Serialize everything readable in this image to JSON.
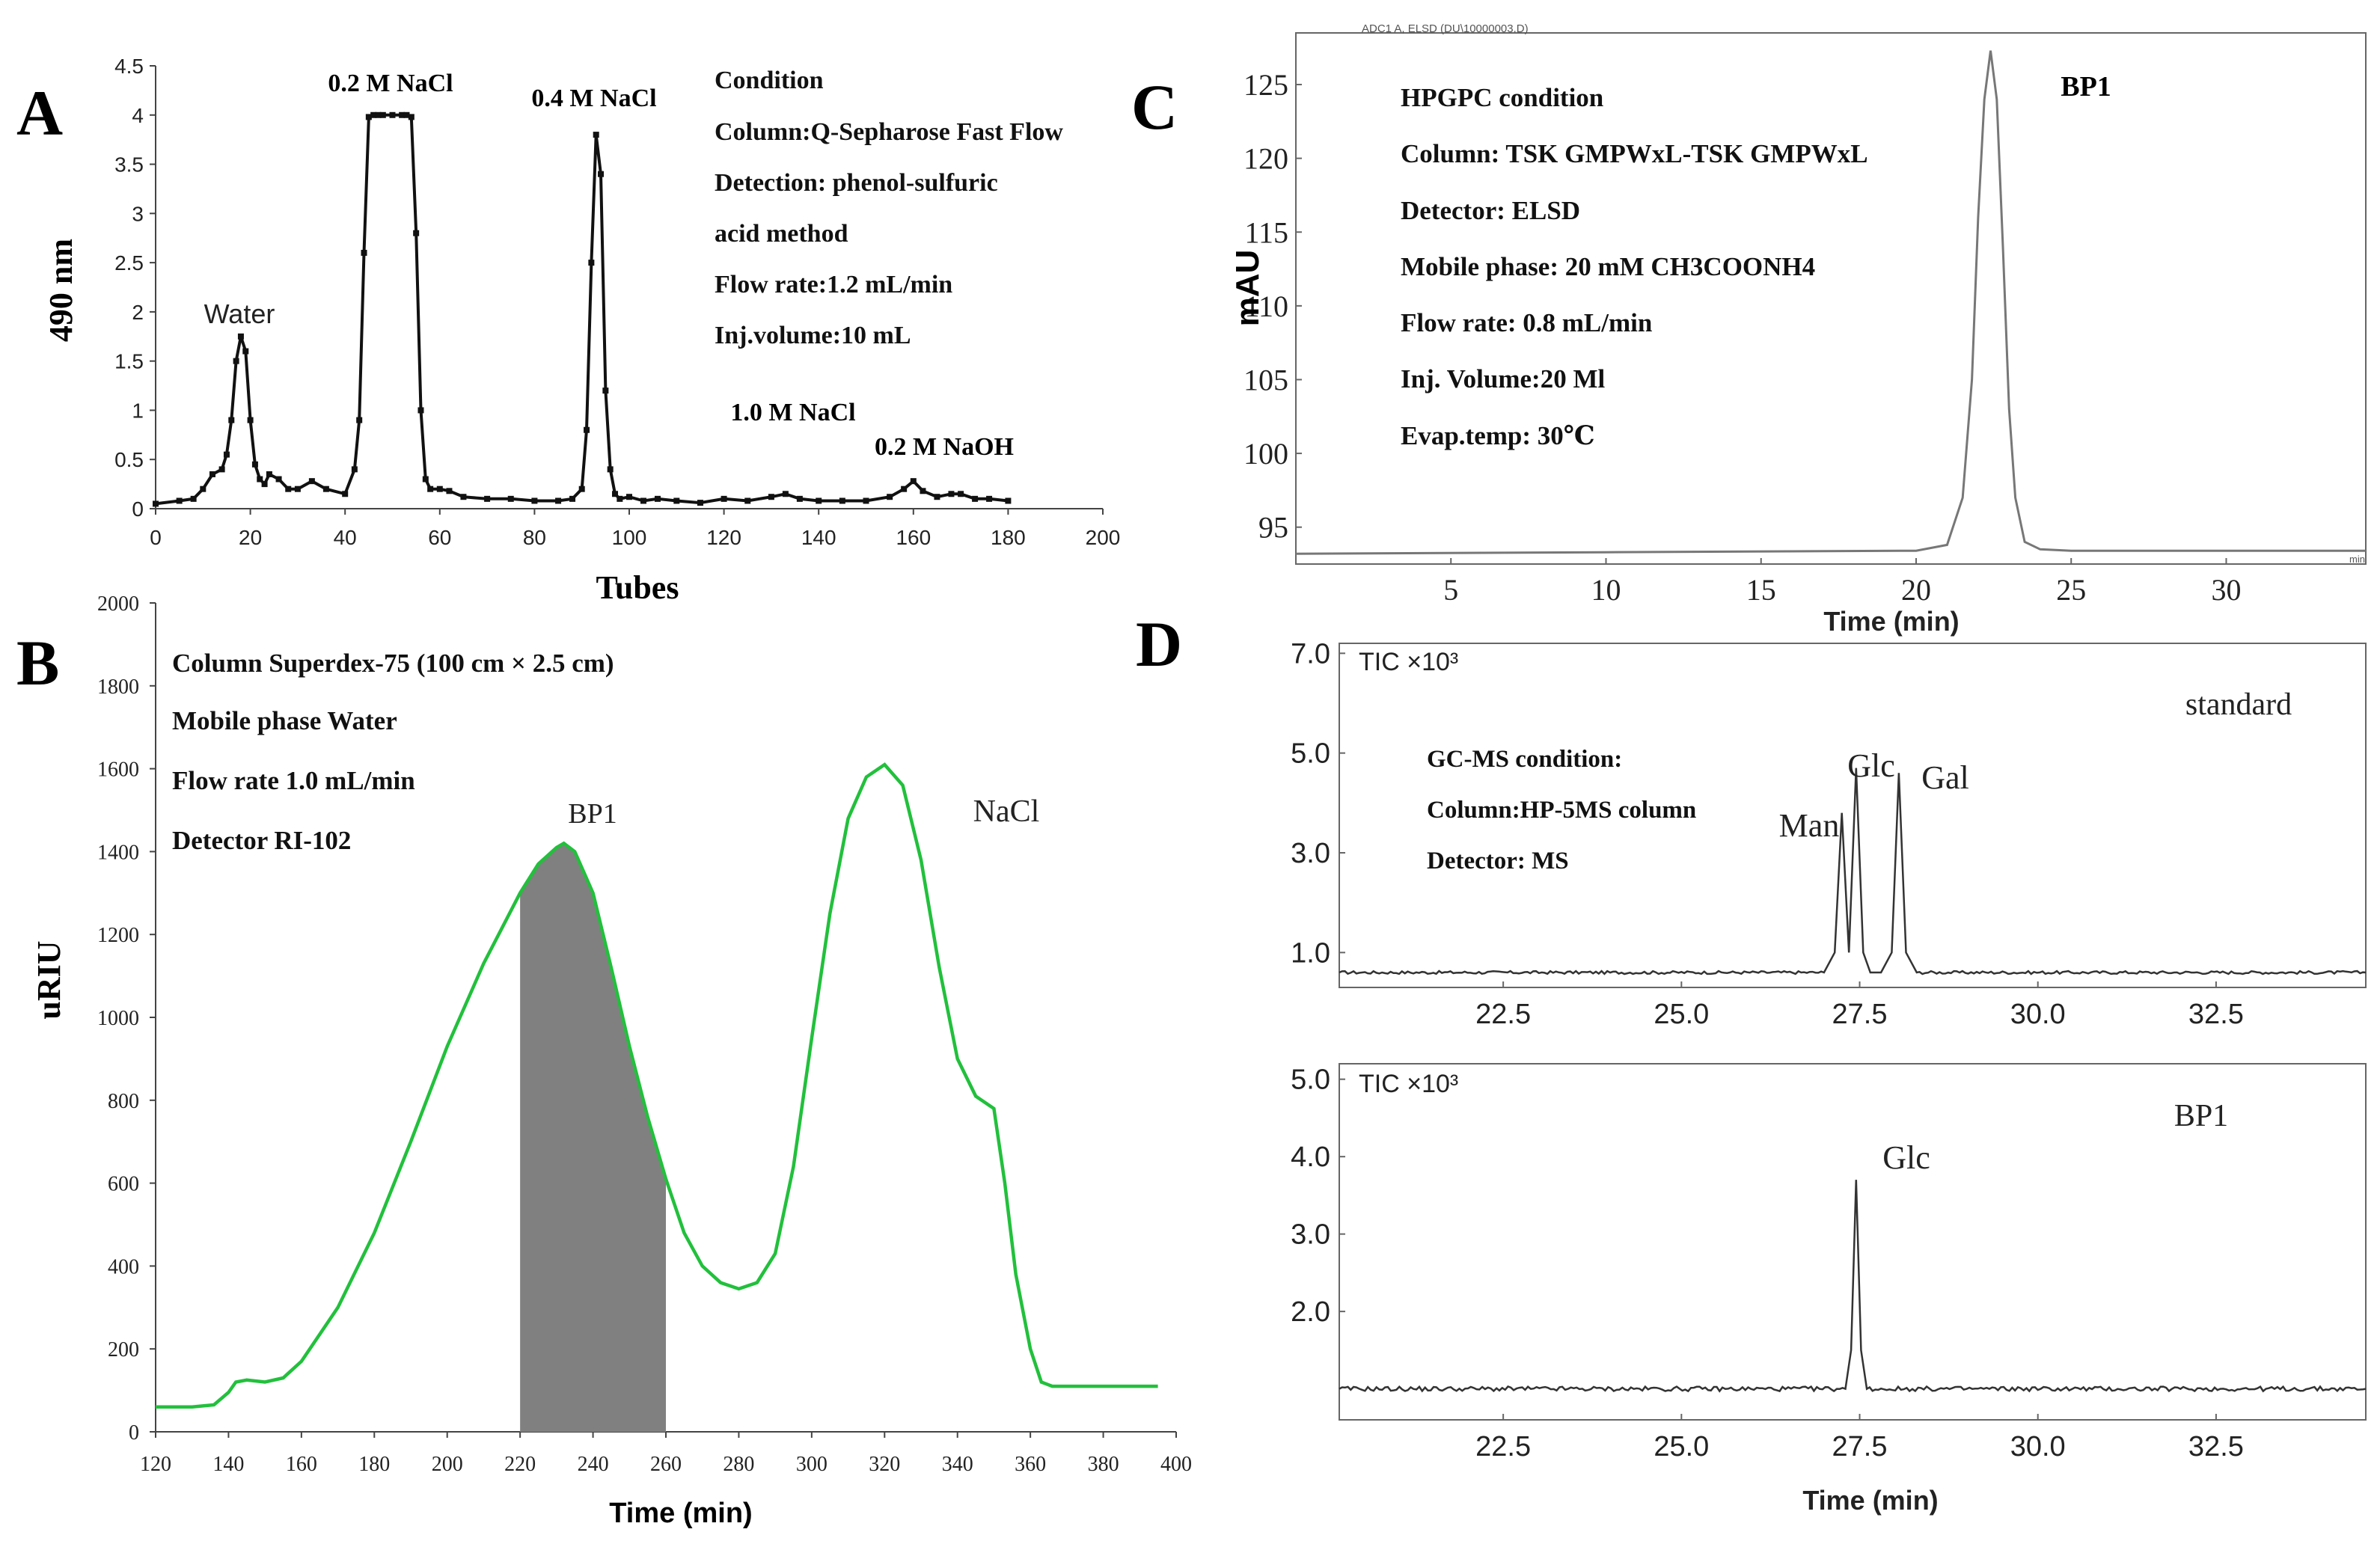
{
  "panel_letters": [
    "A",
    "B",
    "C",
    "D"
  ],
  "chart_data": [
    {
      "panel": "A",
      "type": "line",
      "xlabel": "Tubes",
      "ylabel": "490 nm",
      "xlim": [
        0,
        200
      ],
      "ylim": [
        0,
        4.5
      ],
      "xticks": [
        "0",
        "20",
        "40",
        "60",
        "80",
        "100",
        "120",
        "140",
        "160",
        "180",
        "200"
      ],
      "yticks": [
        "0",
        "0.5",
        "1",
        "1.5",
        "2",
        "2.5",
        "3",
        "3.5",
        "4",
        "4.5"
      ],
      "peak_labels": [
        "Water",
        "0.2 M NaCl",
        "0.4 M NaCl",
        "1.0 M NaCl",
        "0.2 M NaOH"
      ],
      "conditions": [
        "Condition",
        "Column:Q-Sepharose Fast Flow",
        "Detection: phenol-sulfuric",
        "acid method",
        "Flow rate:1.2 mL/min",
        "Inj.volume:10 mL"
      ],
      "series": [
        {
          "name": "absorbance",
          "x": [
            0,
            5,
            8,
            10,
            12,
            14,
            15,
            16,
            17,
            18,
            19,
            20,
            21,
            22,
            23,
            24,
            26,
            28,
            30,
            33,
            36,
            40,
            42,
            43,
            44,
            45,
            46,
            47,
            48,
            50,
            52,
            53,
            54,
            55,
            56,
            57,
            58,
            60,
            62,
            65,
            70,
            75,
            80,
            85,
            88,
            90,
            91,
            92,
            93,
            94,
            95,
            96,
            97,
            98,
            100,
            103,
            106,
            110,
            115,
            120,
            125,
            130,
            133,
            136,
            140,
            145,
            150,
            155,
            158,
            160,
            162,
            165,
            168,
            170,
            173,
            176,
            180
          ],
          "y": [
            0.05,
            0.08,
            0.1,
            0.2,
            0.35,
            0.4,
            0.55,
            0.9,
            1.5,
            1.75,
            1.6,
            0.9,
            0.45,
            0.3,
            0.25,
            0.35,
            0.3,
            0.2,
            0.2,
            0.28,
            0.2,
            0.15,
            0.4,
            0.9,
            2.6,
            3.98,
            4.0,
            4.0,
            4.0,
            4.0,
            4.0,
            4.0,
            3.98,
            2.8,
            1.0,
            0.3,
            0.2,
            0.2,
            0.18,
            0.12,
            0.1,
            0.1,
            0.08,
            0.08,
            0.1,
            0.2,
            0.8,
            2.5,
            3.8,
            3.4,
            1.2,
            0.4,
            0.15,
            0.1,
            0.12,
            0.08,
            0.1,
            0.08,
            0.06,
            0.1,
            0.08,
            0.12,
            0.15,
            0.1,
            0.08,
            0.08,
            0.08,
            0.12,
            0.2,
            0.28,
            0.18,
            0.12,
            0.15,
            0.15,
            0.1,
            0.1,
            0.08
          ]
        }
      ]
    },
    {
      "panel": "B",
      "type": "line",
      "xlabel": "Time (min)",
      "ylabel": "uRIU",
      "xlim": [
        120,
        400
      ],
      "ylim": [
        0,
        2000
      ],
      "xticks": [
        "120",
        "140",
        "160",
        "180",
        "200",
        "220",
        "240",
        "260",
        "280",
        "300",
        "320",
        "340",
        "360",
        "380",
        "400"
      ],
      "yticks": [
        "0",
        "200",
        "400",
        "600",
        "800",
        "1000",
        "1200",
        "1400",
        "1600",
        "1800",
        "2000"
      ],
      "peak_labels": [
        "BP1",
        "NaCl"
      ],
      "conditions": [
        "Column Superdex-75 (100  cm × 2.5  cm)",
        "Mobile phase Water",
        "Flow rate 1.0 mL/min",
        "Detector RI-102"
      ],
      "shaded_range": [
        220,
        260
      ],
      "series": [
        {
          "name": "RI signal",
          "x": [
            120,
            130,
            136,
            140,
            142,
            145,
            150,
            155,
            160,
            170,
            180,
            190,
            200,
            210,
            220,
            225,
            230,
            232,
            235,
            240,
            245,
            250,
            255,
            260,
            265,
            270,
            275,
            280,
            285,
            290,
            295,
            300,
            305,
            310,
            315,
            320,
            325,
            330,
            335,
            340,
            345,
            350,
            353,
            356,
            360,
            363,
            366,
            370,
            380,
            395
          ],
          "y": [
            60,
            60,
            65,
            95,
            120,
            125,
            120,
            130,
            170,
            300,
            480,
            700,
            930,
            1130,
            1300,
            1370,
            1410,
            1420,
            1400,
            1300,
            1120,
            930,
            760,
            610,
            480,
            400,
            360,
            345,
            360,
            430,
            640,
            950,
            1250,
            1480,
            1580,
            1610,
            1560,
            1380,
            1120,
            900,
            810,
            780,
            600,
            380,
            200,
            120,
            110,
            110,
            110,
            110
          ]
        }
      ]
    },
    {
      "panel": "C",
      "type": "line",
      "title": "ADC1 A, ELSD (DU\\10000003.D)",
      "xlabel": "Time (min)",
      "ylabel": "mAU",
      "xlim": [
        0,
        34.5
      ],
      "ylim": [
        92.5,
        128.5
      ],
      "xticks": [
        "5",
        "10",
        "15",
        "20",
        "25",
        "30"
      ],
      "yticks": [
        "95",
        "100",
        "105",
        "110",
        "115",
        "120",
        "125"
      ],
      "corner_unit": "min",
      "peak_labels": [
        "BP1"
      ],
      "conditions": [
        "HPGPC condition",
        "Column: TSK GMPWxL-TSK GMPWxL",
        "Detector: ELSD",
        "Mobile phase: 20 mM CH3COONH4",
        "Flow rate: 0.8  mL/min",
        "Inj. Volume:20 Ml",
        "Evap.temp: 30℃"
      ],
      "series": [
        {
          "name": "ELSD",
          "x": [
            0,
            10,
            20,
            21,
            21.5,
            21.8,
            22.0,
            22.2,
            22.4,
            22.6,
            22.8,
            23.0,
            23.2,
            23.5,
            24,
            25,
            34.5
          ],
          "y": [
            93.2,
            93.3,
            93.4,
            93.8,
            97,
            105,
            116,
            124,
            127.3,
            124,
            114,
            103,
            97,
            94,
            93.5,
            93.4,
            93.4
          ]
        }
      ]
    },
    {
      "panel": "D-standard",
      "type": "line",
      "xlabel": "",
      "ylabel": "TIC ×10³",
      "xlim": [
        20.2,
        34.6
      ],
      "ylim": [
        0.3,
        7.2
      ],
      "xticks": [
        "22.5",
        "25.0",
        "27.5",
        "30.0",
        "32.5"
      ],
      "yticks": [
        "1.0",
        "3.0",
        "5.0",
        "7.0"
      ],
      "sample_label": "standard",
      "peak_labels": [
        "Man",
        "Glc",
        "Gal"
      ],
      "conditions": [
        "GC-MS condition:",
        "Column:HP-5MS column",
        "Detector: MS"
      ],
      "series": [
        {
          "name": "TIC",
          "x": [
            20.2,
            27.0,
            27.15,
            27.25,
            27.35,
            27.45,
            27.55,
            27.65,
            27.8,
            27.95,
            28.05,
            28.15,
            28.3,
            34.6
          ],
          "y": [
            0.6,
            0.6,
            1.0,
            3.8,
            1.0,
            4.7,
            1.0,
            0.6,
            0.6,
            1.0,
            4.6,
            1.0,
            0.6,
            0.6
          ]
        }
      ]
    },
    {
      "panel": "D-BP1",
      "type": "line",
      "xlabel": "Time (min)",
      "ylabel": "TIC ×10³",
      "xlim": [
        20.2,
        34.6
      ],
      "ylim": [
        0.6,
        5.2
      ],
      "xticks": [
        "22.5",
        "25.0",
        "27.5",
        "30.0",
        "32.5"
      ],
      "yticks": [
        "2.0",
        "3.0",
        "4.0",
        "5.0"
      ],
      "sample_label": "BP1",
      "peak_labels": [
        "Glc"
      ],
      "series": [
        {
          "name": "TIC",
          "x": [
            20.2,
            27.3,
            27.38,
            27.45,
            27.52,
            27.6,
            34.6
          ],
          "y": [
            1.0,
            1.0,
            1.5,
            3.7,
            1.5,
            1.0,
            1.0
          ]
        }
      ]
    }
  ]
}
